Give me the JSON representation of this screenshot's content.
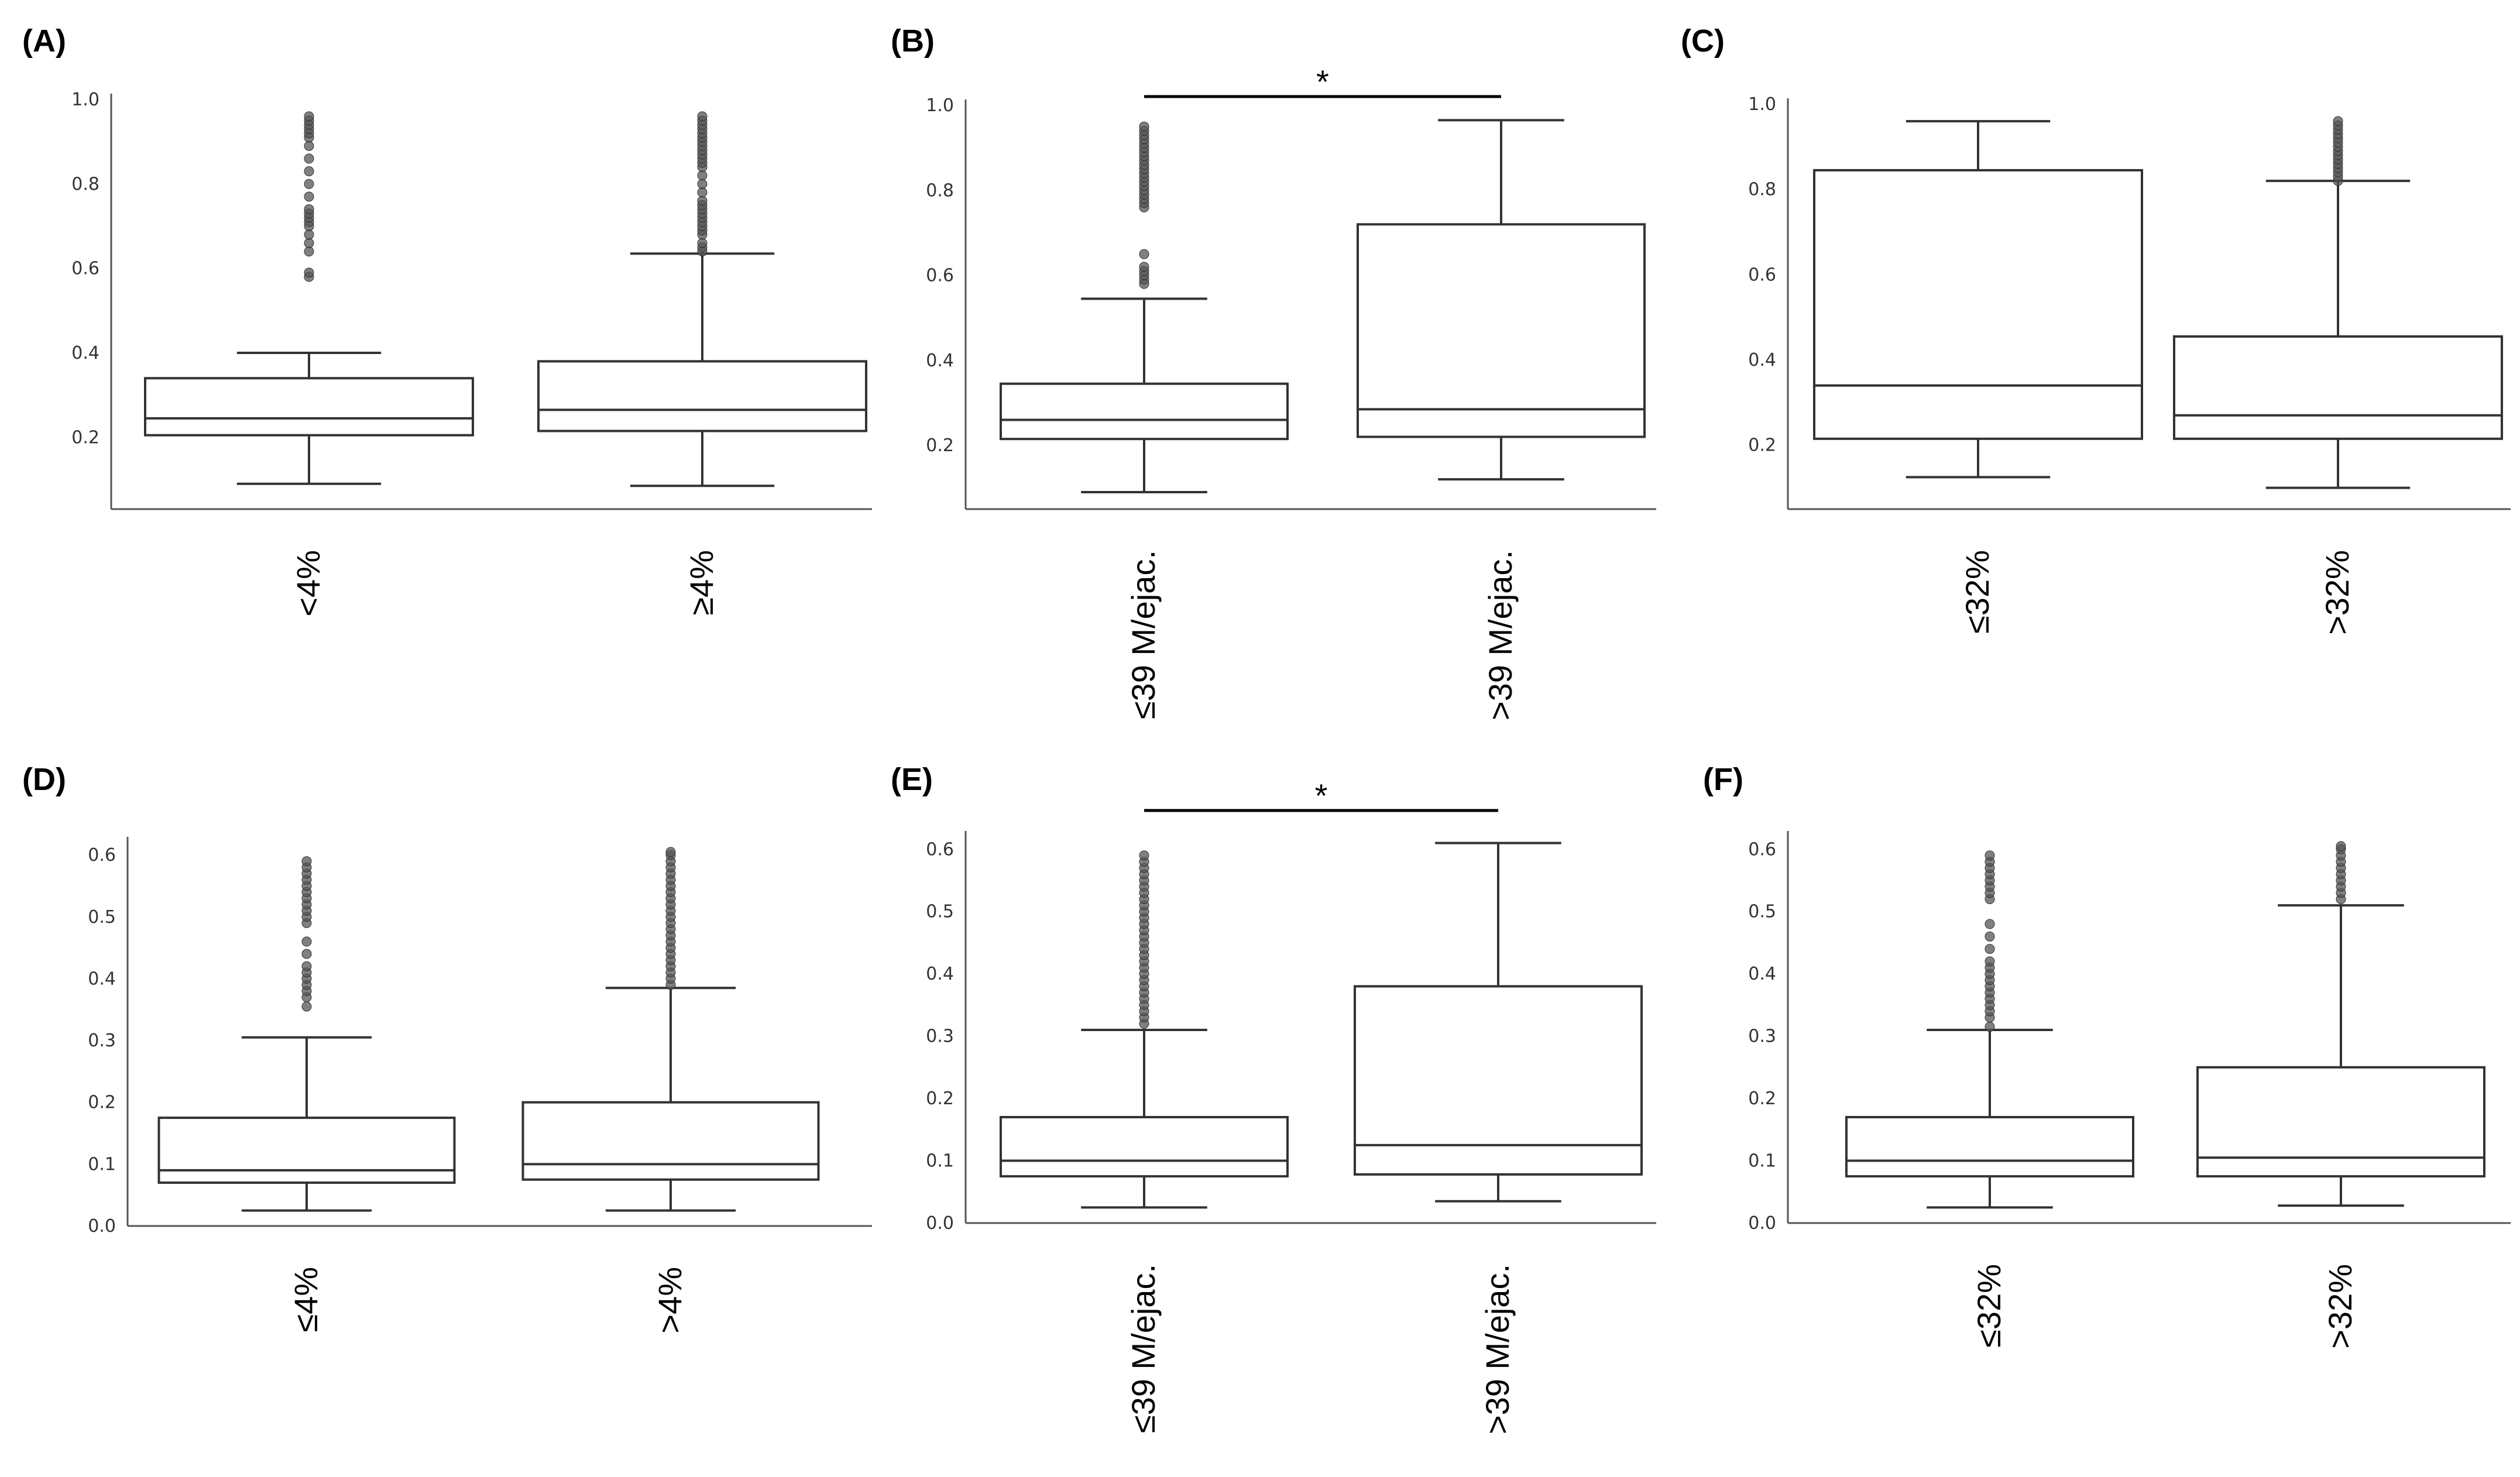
{
  "chart_data": [
    {
      "type": "box",
      "panel": "(A)",
      "ylim": [
        0.03,
        1.0
      ],
      "yticks": [
        "0.2",
        "0.4",
        "0.6",
        "0.8",
        "1.0"
      ],
      "ytick_values": [
        0.2,
        0.4,
        0.6,
        0.8,
        1.0
      ],
      "categories": [
        "<4%",
        "≥4%"
      ],
      "boxes": [
        {
          "min": 0.09,
          "q1": 0.205,
          "median": 0.245,
          "q3": 0.34,
          "max": 0.4,
          "outliers": [
            0.58,
            0.59,
            0.64,
            0.66,
            0.68,
            0.7,
            0.71,
            0.72,
            0.73,
            0.74,
            0.77,
            0.8,
            0.83,
            0.86,
            0.89,
            0.91,
            0.92,
            0.93,
            0.94,
            0.95,
            0.96
          ]
        },
        {
          "min": 0.085,
          "q1": 0.215,
          "median": 0.265,
          "q3": 0.38,
          "max": 0.635,
          "outliers": [
            0.64,
            0.65,
            0.66,
            0.68,
            0.69,
            0.7,
            0.71,
            0.72,
            0.73,
            0.74,
            0.75,
            0.76,
            0.78,
            0.8,
            0.82,
            0.84,
            0.85,
            0.86,
            0.87,
            0.88,
            0.89,
            0.9,
            0.91,
            0.92,
            0.93,
            0.94,
            0.95,
            0.96
          ]
        }
      ],
      "significance": null
    },
    {
      "type": "box",
      "panel": "(B)",
      "ylim": [
        0.05,
        1.0
      ],
      "yticks": [
        "0.2",
        "0.4",
        "0.6",
        "0.8",
        "1.0"
      ],
      "ytick_values": [
        0.2,
        0.4,
        0.6,
        0.8,
        1.0
      ],
      "categories": [
        "≤39 M/ejac.",
        ">39 M/ejac."
      ],
      "boxes": [
        {
          "min": 0.09,
          "q1": 0.215,
          "median": 0.26,
          "q3": 0.345,
          "max": 0.545,
          "outliers": [
            0.58,
            0.59,
            0.6,
            0.61,
            0.62,
            0.65,
            0.76,
            0.77,
            0.78,
            0.79,
            0.8,
            0.81,
            0.82,
            0.83,
            0.84,
            0.85,
            0.86,
            0.87,
            0.88,
            0.89,
            0.9,
            0.91,
            0.92,
            0.93,
            0.94,
            0.95
          ]
        },
        {
          "min": 0.12,
          "q1": 0.22,
          "median": 0.285,
          "q3": 0.72,
          "max": 0.965,
          "outliers": []
        }
      ],
      "significance": "*"
    },
    {
      "type": "box",
      "panel": "(C)",
      "ylim": [
        0.05,
        1.0
      ],
      "yticks": [
        "0.2",
        "0.4",
        "0.6",
        "0.8",
        "1.0"
      ],
      "ytick_values": [
        0.2,
        0.4,
        0.6,
        0.8,
        1.0
      ],
      "categories": [
        "≤32%",
        ">32%"
      ],
      "boxes": [
        {
          "min": 0.125,
          "q1": 0.215,
          "median": 0.34,
          "q3": 0.845,
          "max": 0.96,
          "outliers": []
        },
        {
          "min": 0.1,
          "q1": 0.215,
          "median": 0.27,
          "q3": 0.455,
          "max": 0.82,
          "outliers": [
            0.82,
            0.83,
            0.84,
            0.85,
            0.86,
            0.87,
            0.88,
            0.89,
            0.9,
            0.91,
            0.92,
            0.93,
            0.94,
            0.95,
            0.96
          ]
        }
      ],
      "significance": null
    },
    {
      "type": "box",
      "panel": "(D)",
      "ylim": [
        0.0,
        0.62
      ],
      "yticks": [
        "0.0",
        "0.1",
        "0.2",
        "0.3",
        "0.4",
        "0.5",
        "0.6"
      ],
      "ytick_values": [
        0.0,
        0.1,
        0.2,
        0.3,
        0.4,
        0.5,
        0.6
      ],
      "categories": [
        "≤4%",
        ">4%"
      ],
      "boxes": [
        {
          "min": 0.025,
          "q1": 0.07,
          "median": 0.09,
          "q3": 0.175,
          "max": 0.305,
          "outliers": [
            0.355,
            0.37,
            0.38,
            0.39,
            0.4,
            0.41,
            0.42,
            0.44,
            0.46,
            0.49,
            0.5,
            0.51,
            0.52,
            0.53,
            0.54,
            0.55,
            0.56,
            0.57,
            0.58,
            0.59
          ]
        },
        {
          "min": 0.025,
          "q1": 0.075,
          "median": 0.1,
          "q3": 0.2,
          "max": 0.385,
          "outliers": [
            0.39,
            0.4,
            0.41,
            0.42,
            0.43,
            0.44,
            0.45,
            0.46,
            0.47,
            0.48,
            0.49,
            0.5,
            0.51,
            0.52,
            0.53,
            0.54,
            0.55,
            0.56,
            0.57,
            0.58,
            0.59,
            0.6,
            0.605
          ]
        }
      ],
      "significance": null
    },
    {
      "type": "box",
      "panel": "(E)",
      "ylim": [
        0.0,
        0.62
      ],
      "yticks": [
        "0.0",
        "0.1",
        "0.2",
        "0.3",
        "0.4",
        "0.5",
        "0.6"
      ],
      "ytick_values": [
        0.0,
        0.1,
        0.2,
        0.3,
        0.4,
        0.5,
        0.6
      ],
      "categories": [
        "≤39 M/ejac.",
        ">39 M/ejac."
      ],
      "boxes": [
        {
          "min": 0.025,
          "q1": 0.075,
          "median": 0.1,
          "q3": 0.17,
          "max": 0.31,
          "outliers": [
            0.32,
            0.33,
            0.34,
            0.35,
            0.36,
            0.37,
            0.38,
            0.39,
            0.4,
            0.41,
            0.42,
            0.43,
            0.44,
            0.45,
            0.46,
            0.47,
            0.48,
            0.49,
            0.5,
            0.51,
            0.52,
            0.53,
            0.54,
            0.55,
            0.56,
            0.57,
            0.58,
            0.59
          ]
        },
        {
          "min": 0.035,
          "q1": 0.078,
          "median": 0.125,
          "q3": 0.38,
          "max": 0.61,
          "outliers": []
        }
      ],
      "significance": "*"
    },
    {
      "type": "box",
      "panel": "(F)",
      "ylim": [
        0.0,
        0.62
      ],
      "yticks": [
        "0.0",
        "0.1",
        "0.2",
        "0.3",
        "0.4",
        "0.5",
        "0.6"
      ],
      "ytick_values": [
        0.0,
        0.1,
        0.2,
        0.3,
        0.4,
        0.5,
        0.6
      ],
      "categories": [
        "≤32%",
        ">32%"
      ],
      "boxes": [
        {
          "min": 0.025,
          "q1": 0.075,
          "median": 0.1,
          "q3": 0.17,
          "max": 0.31,
          "outliers": [
            0.315,
            0.33,
            0.34,
            0.35,
            0.36,
            0.37,
            0.38,
            0.39,
            0.4,
            0.41,
            0.42,
            0.44,
            0.46,
            0.48,
            0.52,
            0.53,
            0.54,
            0.55,
            0.56,
            0.57,
            0.58,
            0.59
          ]
        },
        {
          "min": 0.028,
          "q1": 0.075,
          "median": 0.105,
          "q3": 0.25,
          "max": 0.51,
          "outliers": [
            0.52,
            0.53,
            0.54,
            0.55,
            0.56,
            0.57,
            0.58,
            0.59,
            0.6,
            0.605
          ]
        }
      ],
      "significance": null
    }
  ]
}
